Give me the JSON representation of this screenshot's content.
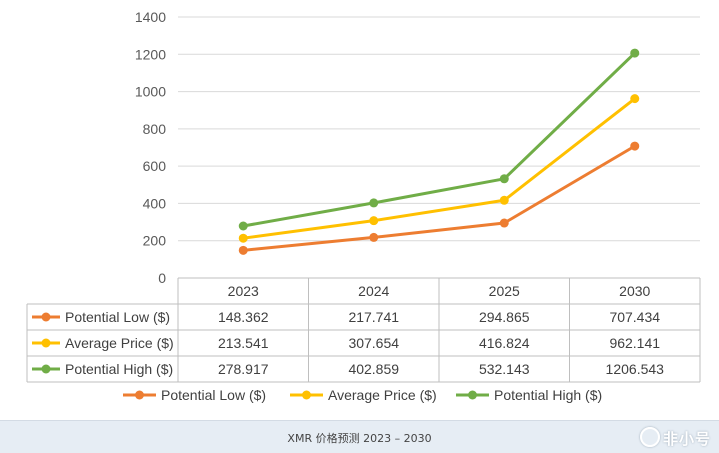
{
  "chart_data": {
    "type": "line",
    "categories": [
      "2023",
      "2024",
      "2025",
      "2030"
    ],
    "ylim": [
      0,
      1400
    ],
    "yticks": [
      0,
      200,
      400,
      600,
      800,
      1000,
      1200,
      1400
    ],
    "grid": true,
    "legend_position": "bottom",
    "series": [
      {
        "name": "Potential Low ($)",
        "color": "#ed7d31",
        "values": [
          148.362,
          217.741,
          294.865,
          707.434
        ],
        "labels": [
          "148.362",
          "217.741",
          "294.865",
          "707.434"
        ]
      },
      {
        "name": "Average Price ($)",
        "color": "#ffc000",
        "values": [
          213.541,
          307.654,
          416.824,
          962.141
        ],
        "labels": [
          "213.541",
          "307.654",
          "416.824",
          "962.141"
        ]
      },
      {
        "name": "Potential High ($)",
        "color": "#70ad47",
        "values": [
          278.917,
          402.859,
          532.143,
          1206.543
        ],
        "labels": [
          "278.917",
          "402.859",
          "532.143",
          "1206.543"
        ]
      }
    ]
  },
  "caption": "XMR 价格预测 2023 – 2030",
  "watermark": "非小号",
  "watermark_icon": "coin-logo-icon"
}
